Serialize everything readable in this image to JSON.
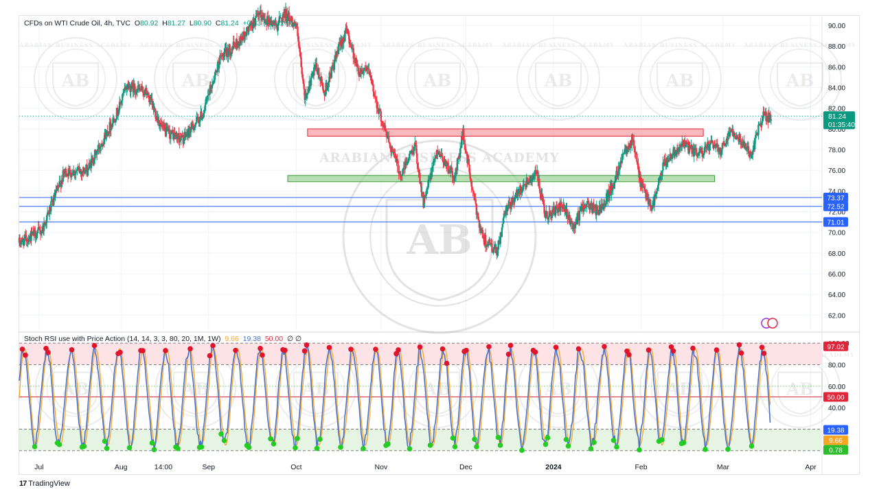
{
  "header": {
    "symbol": "CFDs on WTI Crude Oil, 4h, TVC",
    "o_label": "O",
    "o": "80.92",
    "h_label": "H",
    "h": "81.27",
    "l_label": "L",
    "l": "80.90",
    "c_label": "C",
    "c": "81.24",
    "change": "+0.33 (+0.41%)"
  },
  "indicator": {
    "label": "Stoch RSI use with Price Action (14, 14, 3, 3, 80, 20, 1M, 1W)",
    "v1": "9.66",
    "v2": "19.38",
    "v3": "50.00",
    "v4": "∅ ∅"
  },
  "brand": "TradingView",
  "watermark": "ARABIAN BUSINESS ACADEMY",
  "watermark_logo": "AB",
  "colors": {
    "up": "#089981",
    "down": "#f23645",
    "k_line": "#4a6fc8",
    "d_line": "#f5a623",
    "red_zone": "#f7a1a7",
    "green_zone": "#9fd49a",
    "blue_line": "#2962ff"
  },
  "chart_data": [
    {
      "type": "candlestick",
      "title": "CFDs on WTI Crude Oil, 4h, TVC",
      "x_tick_labels": [
        "Jul",
        "Aug",
        "14:00",
        "Sep",
        "Oct",
        "Nov",
        "Dec",
        "2024",
        "Feb",
        "Mar",
        "Apr"
      ],
      "y_ticks": [
        62,
        64,
        66,
        68,
        70,
        72,
        74,
        76,
        78,
        80,
        82,
        84,
        86,
        88,
        90
      ],
      "ylim": [
        60.5,
        91.0
      ],
      "last_price": "81.24",
      "countdown": "01:35:40",
      "price_path_keypoints": [
        [
          "2023-06-26",
          69.0
        ],
        [
          "2023-07-04",
          70.2
        ],
        [
          "2023-07-12",
          75.8
        ],
        [
          "2023-07-20",
          76.0
        ],
        [
          "2023-07-31",
          81.8
        ],
        [
          "2023-08-03",
          84.2
        ],
        [
          "2023-08-10",
          83.5
        ],
        [
          "2023-08-16",
          79.8
        ],
        [
          "2023-08-23",
          79.0
        ],
        [
          "2023-08-30",
          81.5
        ],
        [
          "2023-09-05",
          86.8
        ],
        [
          "2023-09-12",
          88.5
        ],
        [
          "2023-09-19",
          91.0
        ],
        [
          "2023-09-25",
          90.0
        ],
        [
          "2023-09-28",
          91.2
        ],
        [
          "2023-10-02",
          90.0
        ],
        [
          "2023-10-05",
          83.0
        ],
        [
          "2023-10-09",
          86.0
        ],
        [
          "2023-10-12",
          83.5
        ],
        [
          "2023-10-18",
          88.5
        ],
        [
          "2023-10-20",
          89.5
        ],
        [
          "2023-10-24",
          85.5
        ],
        [
          "2023-10-27",
          86.0
        ],
        [
          "2023-11-01",
          81.0
        ],
        [
          "2023-11-08",
          75.5
        ],
        [
          "2023-11-13",
          78.5
        ],
        [
          "2023-11-16",
          72.8
        ],
        [
          "2023-11-21",
          78.0
        ],
        [
          "2023-11-27",
          75.2
        ],
        [
          "2023-11-30",
          79.5
        ],
        [
          "2023-12-04",
          73.0
        ],
        [
          "2023-12-07",
          69.5
        ],
        [
          "2023-12-12",
          68.0
        ],
        [
          "2023-12-15",
          72.0
        ],
        [
          "2023-12-21",
          74.5
        ],
        [
          "2023-12-26",
          75.8
        ],
        [
          "2023-12-29",
          71.5
        ],
        [
          "2024-01-04",
          72.5
        ],
        [
          "2024-01-08",
          70.5
        ],
        [
          "2024-01-12",
          72.8
        ],
        [
          "2024-01-17",
          72.0
        ],
        [
          "2024-01-22",
          74.5
        ],
        [
          "2024-01-26",
          78.0
        ],
        [
          "2024-01-29",
          79.0
        ],
        [
          "2024-02-01",
          74.5
        ],
        [
          "2024-02-05",
          72.5
        ],
        [
          "2024-02-09",
          76.5
        ],
        [
          "2024-02-13",
          78.0
        ],
        [
          "2024-02-16",
          78.5
        ],
        [
          "2024-02-21",
          77.5
        ],
        [
          "2024-02-26",
          78.5
        ],
        [
          "2024-02-29",
          78.0
        ],
        [
          "2024-03-04",
          80.0
        ],
        [
          "2024-03-07",
          79.0
        ],
        [
          "2024-03-11",
          77.5
        ],
        [
          "2024-03-13",
          79.5
        ],
        [
          "2024-03-15",
          81.3
        ],
        [
          "2024-03-18",
          81.0
        ]
      ],
      "horizontal_lines": [
        {
          "value": 73.37,
          "label": "73.37"
        },
        {
          "value": 72.52,
          "label": "72.52"
        },
        {
          "value": 71.01,
          "label": "71.01"
        }
      ],
      "zones": [
        {
          "kind": "resistance",
          "from": "2023-10-06",
          "to": "2024-02-23",
          "low": 79.3,
          "high": 80.0
        },
        {
          "kind": "support",
          "from": "2023-09-29",
          "to": "2024-02-27",
          "low": 74.9,
          "high": 75.5
        }
      ],
      "grid": true
    },
    {
      "type": "line",
      "title": "Stoch RSI use with Price Action (14, 14, 3, 3, 80, 20, 1M, 1W)",
      "ylim": [
        -2,
        102
      ],
      "y_ticks": [
        40.0,
        60.0,
        80.0,
        100.0
      ],
      "levels": [
        {
          "value": 97.02,
          "label": "97.02",
          "color": "#e0263a"
        },
        {
          "value": 50.0,
          "label": "50.00",
          "color": "#e0263a"
        },
        {
          "value": 19.38,
          "label": "19.38",
          "color": "#2962ff"
        },
        {
          "value": 9.66,
          "label": "9.66",
          "color": "#f5a623"
        },
        {
          "value": 0.78,
          "label": "0.78",
          "color": "#2ebd2e"
        }
      ],
      "overbought_band": [
        80,
        100
      ],
      "oversold_band": [
        0,
        20
      ],
      "series": []
    }
  ]
}
